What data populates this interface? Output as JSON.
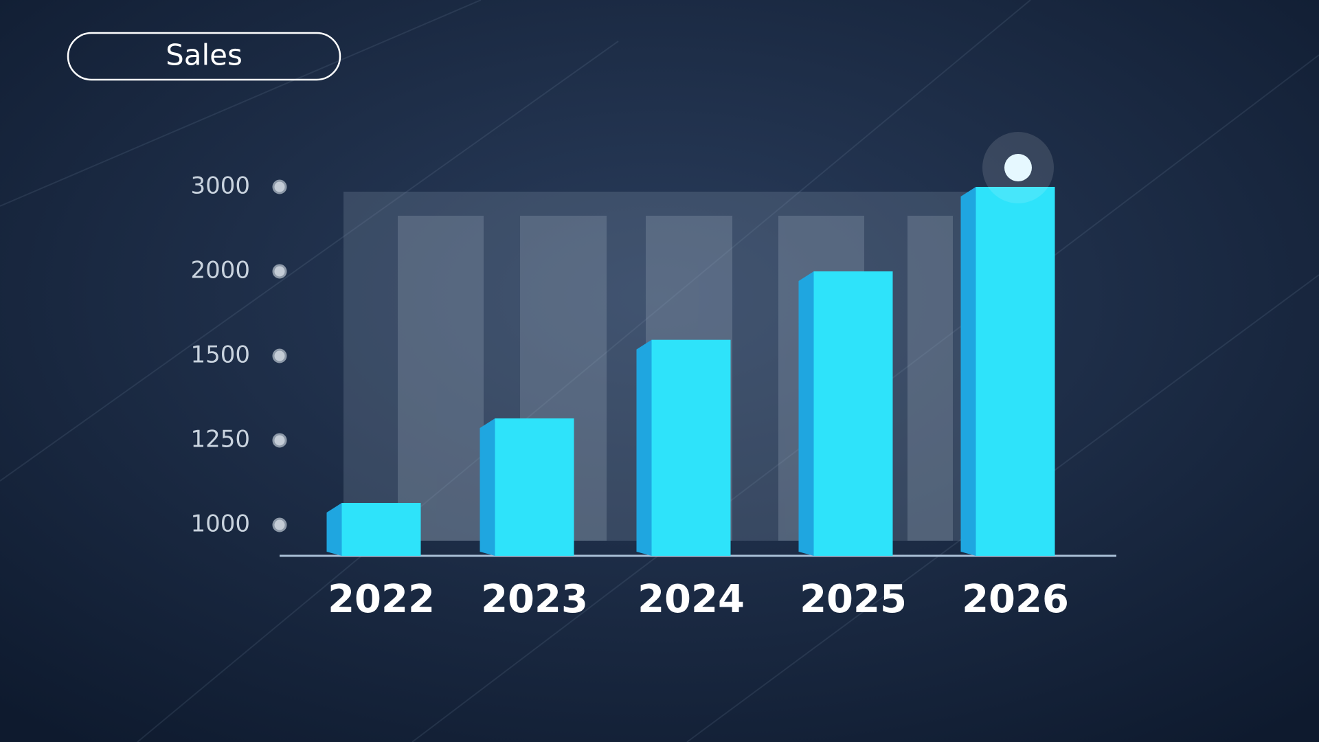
{
  "chart_data": {
    "type": "bar",
    "title": "Sales",
    "categories": [
      "2022",
      "2023",
      "2024",
      "2025",
      "2026"
    ],
    "values": [
      1065,
      1315,
      1595,
      2000,
      3000
    ],
    "color": "#2ee3fa",
    "ylim": [
      900,
      3000
    ],
    "yticks": [
      1000,
      1250,
      1500,
      2000,
      3000
    ]
  }
}
